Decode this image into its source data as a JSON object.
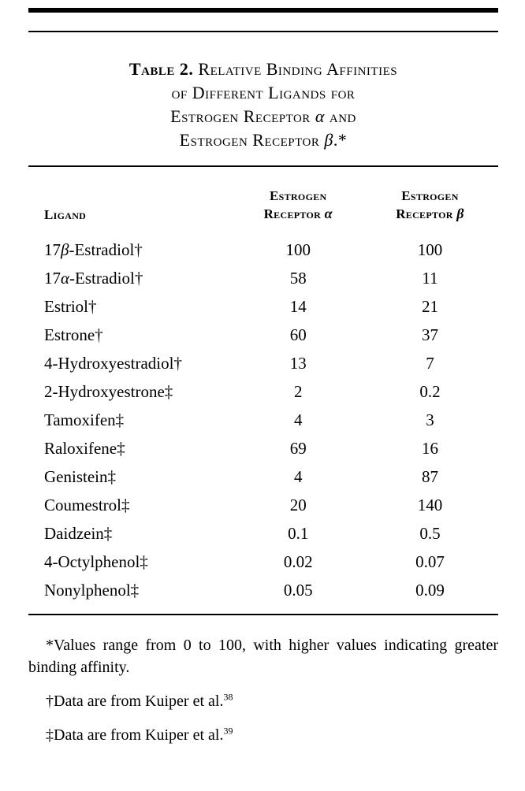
{
  "page": {
    "background_color": "#ffffff",
    "text_color": "#000000"
  },
  "table": {
    "number_label": "Table 2.",
    "title_full": "Table 2. Relative Binding Affinities of Different Ligands for Estrogen Receptor α and Estrogen Receptor β.*",
    "title_lines": [
      [
        {
          "t": "Table 2.",
          "bold": true
        },
        {
          "t": " Relative Binding Affinities"
        }
      ],
      [
        {
          "t": "of Different Ligands for"
        }
      ],
      [
        {
          "t": "Estrogen Receptor "
        },
        {
          "t": "α",
          "greek": true
        },
        {
          "t": " and"
        }
      ],
      [
        {
          "t": "Estrogen Receptor "
        },
        {
          "t": "β",
          "greek": true
        },
        {
          "t": ".*"
        }
      ]
    ],
    "columns": [
      {
        "label": "Ligand"
      },
      {
        "line1": "Estrogen",
        "line2": "Receptor",
        "symbol": "α"
      },
      {
        "line1": "Estrogen",
        "line2": "Receptor",
        "symbol": "β"
      }
    ],
    "rows": [
      {
        "ligand": "17β-Estradiol†",
        "er_alpha": "100",
        "er_beta": "100"
      },
      {
        "ligand": "17α-Estradiol†",
        "er_alpha": "58",
        "er_beta": "11"
      },
      {
        "ligand": "Estriol†",
        "er_alpha": "14",
        "er_beta": "21"
      },
      {
        "ligand": "Estrone†",
        "er_alpha": "60",
        "er_beta": "37"
      },
      {
        "ligand": "4-Hydroxyestradiol†",
        "er_alpha": "13",
        "er_beta": "7"
      },
      {
        "ligand": "2-Hydroxyestrone‡",
        "er_alpha": "2",
        "er_beta": "0.2"
      },
      {
        "ligand": "Tamoxifen‡",
        "er_alpha": "4",
        "er_beta": "3"
      },
      {
        "ligand": "Raloxifene‡",
        "er_alpha": "69",
        "er_beta": "16"
      },
      {
        "ligand": "Genistein‡",
        "er_alpha": "4",
        "er_beta": "87"
      },
      {
        "ligand": "Coumestrol‡",
        "er_alpha": "20",
        "er_beta": "140"
      },
      {
        "ligand": "Daidzein‡",
        "er_alpha": "0.1",
        "er_beta": "0.5"
      },
      {
        "ligand": "4-Octylphenol‡",
        "er_alpha": "0.02",
        "er_beta": "0.07"
      },
      {
        "ligand": "Nonylphenol‡",
        "er_alpha": "0.05",
        "er_beta": "0.09"
      }
    ],
    "footnotes": [
      {
        "marker": "*",
        "text": "Values range from 0 to 100, with higher values indicating greater binding affinity.",
        "ref": ""
      },
      {
        "marker": "†",
        "text": "Data are from Kuiper et al.",
        "ref": "38"
      },
      {
        "marker": "‡",
        "text": "Data are from Kuiper et al.",
        "ref": "39"
      }
    ]
  }
}
